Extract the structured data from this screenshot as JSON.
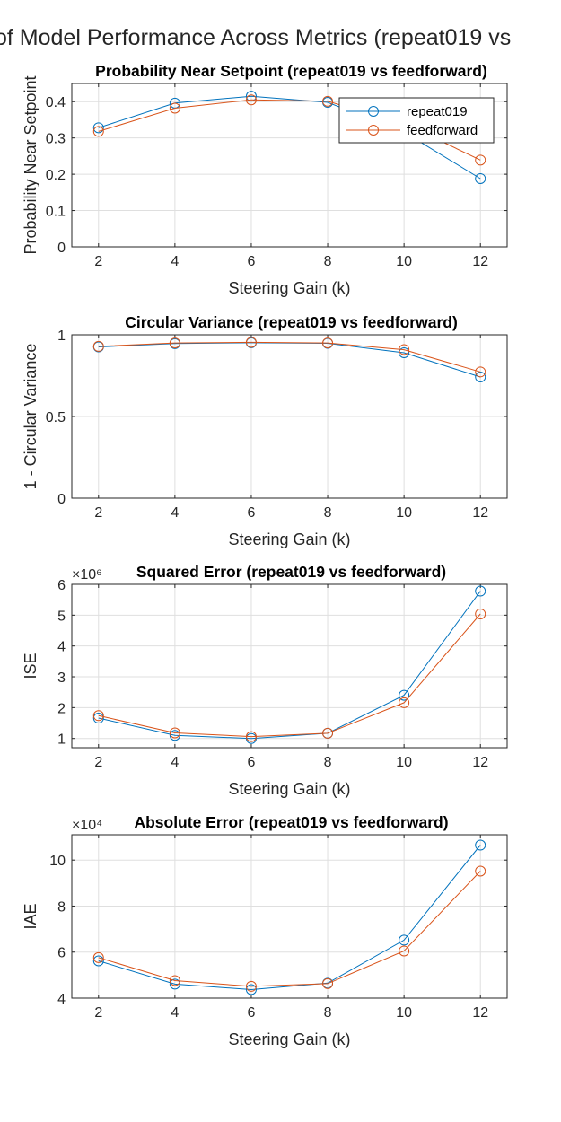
{
  "figure": {
    "suptitle": "of Model Performance Across Metrics (repeat019 vs"
  },
  "legend": {
    "entries": [
      "repeat019",
      "feedforward"
    ]
  },
  "colors": {
    "repeat019": "#0072bd",
    "feedforward": "#d95319"
  },
  "chart_data": [
    {
      "type": "line",
      "title": "Probability Near Setpoint (repeat019 vs feedforward)",
      "xlabel": "Steering Gain (k)",
      "ylabel": "Probability Near Setpoint",
      "x": [
        2,
        4,
        6,
        8,
        10,
        12
      ],
      "xlim": [
        1.3,
        12.7
      ],
      "ylim": [
        0,
        0.45
      ],
      "xticks": [
        2,
        4,
        6,
        8,
        10,
        12
      ],
      "xticklabels": [
        "2",
        "4",
        "6",
        "8",
        "10",
        "12"
      ],
      "yticks": [
        0,
        0.1,
        0.2,
        0.3,
        0.4
      ],
      "yticklabels": [
        "0",
        "0.1",
        "0.2",
        "0.3",
        "0.4"
      ],
      "exponent": "",
      "grid": true,
      "legend_position": "top-right",
      "series": [
        {
          "name": "repeat019",
          "values": [
            0.328,
            0.396,
            0.415,
            0.398,
            0.316,
            0.188
          ]
        },
        {
          "name": "feedforward",
          "values": [
            0.318,
            0.382,
            0.405,
            0.401,
            0.34,
            0.239
          ]
        }
      ]
    },
    {
      "type": "line",
      "title": "Circular Variance (repeat019 vs feedforward)",
      "xlabel": "Steering Gain (k)",
      "ylabel": "1 - Circular Variance",
      "x": [
        2,
        4,
        6,
        8,
        10,
        12
      ],
      "xlim": [
        1.3,
        12.7
      ],
      "ylim": [
        0,
        1
      ],
      "xticks": [
        2,
        4,
        6,
        8,
        10,
        12
      ],
      "xticklabels": [
        "2",
        "4",
        "6",
        "8",
        "10",
        "12"
      ],
      "yticks": [
        0,
        0.5,
        1
      ],
      "yticklabels": [
        "0",
        "0.5",
        "1"
      ],
      "exponent": "",
      "grid": true,
      "series": [
        {
          "name": "repeat019",
          "values": [
            0.926,
            0.946,
            0.951,
            0.948,
            0.89,
            0.742
          ]
        },
        {
          "name": "feedforward",
          "values": [
            0.929,
            0.95,
            0.954,
            0.95,
            0.909,
            0.773
          ]
        }
      ]
    },
    {
      "type": "line",
      "title": "Squared Error (repeat019 vs feedforward)",
      "xlabel": "Steering Gain (k)",
      "ylabel": "ISE",
      "x": [
        2,
        4,
        6,
        8,
        10,
        12
      ],
      "xlim": [
        1.3,
        12.7
      ],
      "ylim": [
        0.7,
        6
      ],
      "xticks": [
        2,
        4,
        6,
        8,
        10,
        12
      ],
      "xticklabels": [
        "2",
        "4",
        "6",
        "8",
        "10",
        "12"
      ],
      "yticks": [
        1,
        2,
        3,
        4,
        5,
        6
      ],
      "yticklabels": [
        "1",
        "2",
        "3",
        "4",
        "5",
        "6"
      ],
      "exponent": "×10⁶",
      "grid": true,
      "series": [
        {
          "name": "repeat019",
          "values": [
            1.66,
            1.1,
            1.0,
            1.17,
            2.4,
            5.78
          ]
        },
        {
          "name": "feedforward",
          "values": [
            1.74,
            1.18,
            1.06,
            1.17,
            2.16,
            5.04
          ]
        }
      ]
    },
    {
      "type": "line",
      "title": "Absolute Error (repeat019 vs feedforward)",
      "xlabel": "Steering Gain (k)",
      "ylabel": "IAE",
      "x": [
        2,
        4,
        6,
        8,
        10,
        12
      ],
      "xlim": [
        1.3,
        12.7
      ],
      "ylim": [
        4,
        11.1
      ],
      "xticks": [
        2,
        4,
        6,
        8,
        10,
        12
      ],
      "xticklabels": [
        "2",
        "4",
        "6",
        "8",
        "10",
        "12"
      ],
      "yticks": [
        4,
        6,
        8,
        10
      ],
      "yticklabels": [
        "4",
        "6",
        "8",
        "10"
      ],
      "exponent": "×10⁴",
      "grid": true,
      "series": [
        {
          "name": "repeat019",
          "values": [
            5.62,
            4.61,
            4.37,
            4.65,
            6.52,
            10.65
          ]
        },
        {
          "name": "feedforward",
          "values": [
            5.76,
            4.76,
            4.51,
            4.63,
            6.05,
            9.52
          ]
        }
      ]
    }
  ]
}
